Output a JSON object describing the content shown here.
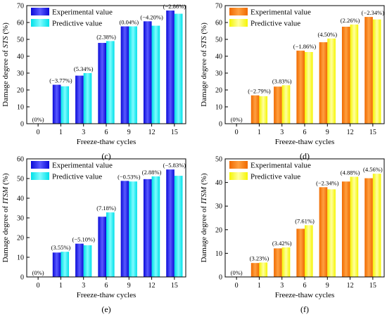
{
  "chart_data": [
    {
      "type": "bar",
      "panel_label": "(c)",
      "ylabel_prefix": "Damage degree of ",
      "ylabel_var": "STS",
      "ylabel_suffix": " (%)",
      "xlabel": "Freeze-thaw cycles",
      "categories": [
        "0",
        "1",
        "3",
        "6",
        "9",
        "12",
        "15"
      ],
      "ylim": [
        0,
        70
      ],
      "yticks": [
        0,
        10,
        20,
        30,
        40,
        50,
        60,
        70
      ],
      "series": [
        {
          "name": "Experimental value",
          "values": [
            0,
            23.1,
            28.5,
            47.9,
            57.7,
            60.7,
            67.1
          ]
        },
        {
          "name": "Predictive value",
          "values": [
            0,
            22.2,
            30.0,
            49.0,
            57.7,
            58.1,
            65.2
          ]
        }
      ],
      "annotations": [
        "(0%)",
        "(−3.77%)",
        "(5.34%)",
        "(2.38%)",
        "(0.04%)",
        "(−4.20%)",
        "(−2.86%)"
      ],
      "colors": [
        "#1a1aee",
        "#00f0f0"
      ],
      "legend": "top-left"
    },
    {
      "type": "bar",
      "panel_label": "(d)",
      "ylabel_prefix": "Damage degree of ",
      "ylabel_var": "STS",
      "ylabel_suffix": " (%)",
      "xlabel": "Freeze-thaw cycles",
      "categories": [
        "0",
        "1",
        "3",
        "6",
        "9",
        "12",
        "15"
      ],
      "ylim": [
        0,
        70
      ],
      "yticks": [
        0,
        10,
        20,
        30,
        40,
        50,
        60,
        70
      ],
      "series": [
        {
          "name": "Experimental value",
          "values": [
            0,
            16.8,
            22.0,
            43.3,
            48.3,
            57.5,
            63.3
          ]
        },
        {
          "name": "Predictive value",
          "values": [
            0,
            16.3,
            22.8,
            42.5,
            50.5,
            58.8,
            61.8
          ]
        }
      ],
      "annotations": [
        "(0%)",
        "(−2.79%)",
        "(3.83%)",
        "(−1.86%)",
        "(4.50%)",
        "(2.26%)",
        "(−2.34%)"
      ],
      "colors": [
        "#ff7f00",
        "#ffff33"
      ],
      "legend": "top-left"
    },
    {
      "type": "bar",
      "panel_label": "(e)",
      "ylabel_prefix": "Damage degree of ",
      "ylabel_var": "ITSM",
      "ylabel_suffix": " (%)",
      "xlabel": "Freeze-thaw cycles",
      "categories": [
        "0",
        "1",
        "3",
        "6",
        "9",
        "12",
        "15"
      ],
      "ylim": [
        0,
        60
      ],
      "yticks": [
        0,
        10,
        20,
        30,
        40,
        50,
        60
      ],
      "series": [
        {
          "name": "Experimental value",
          "values": [
            0,
            12.4,
            16.9,
            30.6,
            48.8,
            49.7,
            54.6
          ]
        },
        {
          "name": "Predictive value",
          "values": [
            0,
            12.8,
            16.1,
            32.8,
            48.5,
            51.1,
            51.4
          ]
        }
      ],
      "annotations": [
        "(0%)",
        "(3.55%)",
        "(−5.10%)",
        "(7.18%)",
        "(−0.53%)",
        "(2.88%)",
        "(−5.83%)"
      ],
      "colors": [
        "#1a1aee",
        "#00f0f0"
      ],
      "legend": "top-left"
    },
    {
      "type": "bar",
      "panel_label": "(f)",
      "ylabel_prefix": "Damage degree of ",
      "ylabel_var": "ITSM",
      "ylabel_suffix": " (%)",
      "xlabel": "Freeze-thaw cycles",
      "categories": [
        "0",
        "1",
        "3",
        "6",
        "9",
        "12",
        "15"
      ],
      "ylim": [
        0,
        50
      ],
      "yticks": [
        0,
        10,
        20,
        30,
        40,
        50
      ],
      "series": [
        {
          "name": "Experimental value",
          "values": [
            0,
            5.9,
            12.1,
            20.4,
            38.0,
            40.4,
            41.8
          ]
        },
        {
          "name": "Predictive value",
          "values": [
            0,
            6.1,
            12.5,
            21.9,
            37.1,
            42.4,
            43.7
          ]
        }
      ],
      "annotations": [
        "(0%)",
        "(3.23%)",
        "(3.42%)",
        "(7.61%)",
        "(−2.34%)",
        "(4.88%)",
        "(4.56%)"
      ],
      "colors": [
        "#ff7f00",
        "#ffff33"
      ],
      "legend": "top-left"
    }
  ]
}
